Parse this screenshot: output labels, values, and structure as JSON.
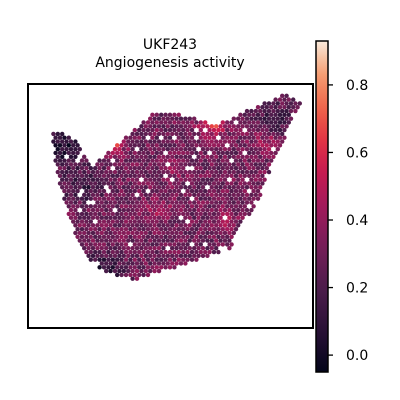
{
  "chart_data": {
    "type": "heatmap",
    "subtype": "spatial-hexbin",
    "title": "UKF243",
    "subtitle": "Angiogenesis activity",
    "xlabel": "",
    "ylabel": "",
    "colormap": "rocket",
    "colorbar": {
      "vmin": -0.05,
      "vmax": 0.93,
      "ticks": [
        0.0,
        0.2,
        0.4,
        0.6,
        0.8
      ],
      "tick_labels": [
        "0.0",
        "0.2",
        "0.4",
        "0.6",
        "0.8"
      ],
      "placement": "right"
    },
    "grid": false,
    "tissue": {
      "outline": [
        [
          0.2,
          0.34
        ],
        [
          0.43,
          0.1
        ],
        [
          0.55,
          0.1
        ],
        [
          0.66,
          0.15
        ],
        [
          0.82,
          0.07
        ],
        [
          0.93,
          0.01
        ],
        [
          0.99,
          0.05
        ],
        [
          0.89,
          0.31
        ],
        [
          0.83,
          0.49
        ],
        [
          0.77,
          0.6
        ],
        [
          0.72,
          0.71
        ],
        [
          0.57,
          0.77
        ],
        [
          0.43,
          0.82
        ],
        [
          0.37,
          0.85
        ],
        [
          0.23,
          0.8
        ],
        [
          0.16,
          0.71
        ],
        [
          0.12,
          0.57
        ],
        [
          0.08,
          0.4
        ],
        [
          0.05,
          0.2
        ],
        [
          0.07,
          0.17
        ],
        [
          0.15,
          0.22
        ]
      ],
      "values": {
        "base": 0.3,
        "hotspots": [
          {
            "x": 0.27,
            "y": 0.22,
            "value": 0.78
          },
          {
            "x": 0.66,
            "y": 0.15,
            "value": 0.62
          },
          {
            "x": 0.46,
            "y": 0.53,
            "value": 0.45
          },
          {
            "x": 0.7,
            "y": 0.58,
            "value": 0.42
          },
          {
            "x": 0.86,
            "y": 0.22,
            "value": 0.44
          },
          {
            "x": 0.52,
            "y": 0.35,
            "value": 0.38
          }
        ],
        "coldspots": [
          {
            "x": 0.1,
            "y": 0.25,
            "value": 0.05
          },
          {
            "x": 0.17,
            "y": 0.42,
            "value": 0.12
          },
          {
            "x": 0.25,
            "y": 0.8,
            "value": 0.08
          },
          {
            "x": 0.9,
            "y": 0.12,
            "value": 0.15
          }
        ]
      }
    }
  }
}
